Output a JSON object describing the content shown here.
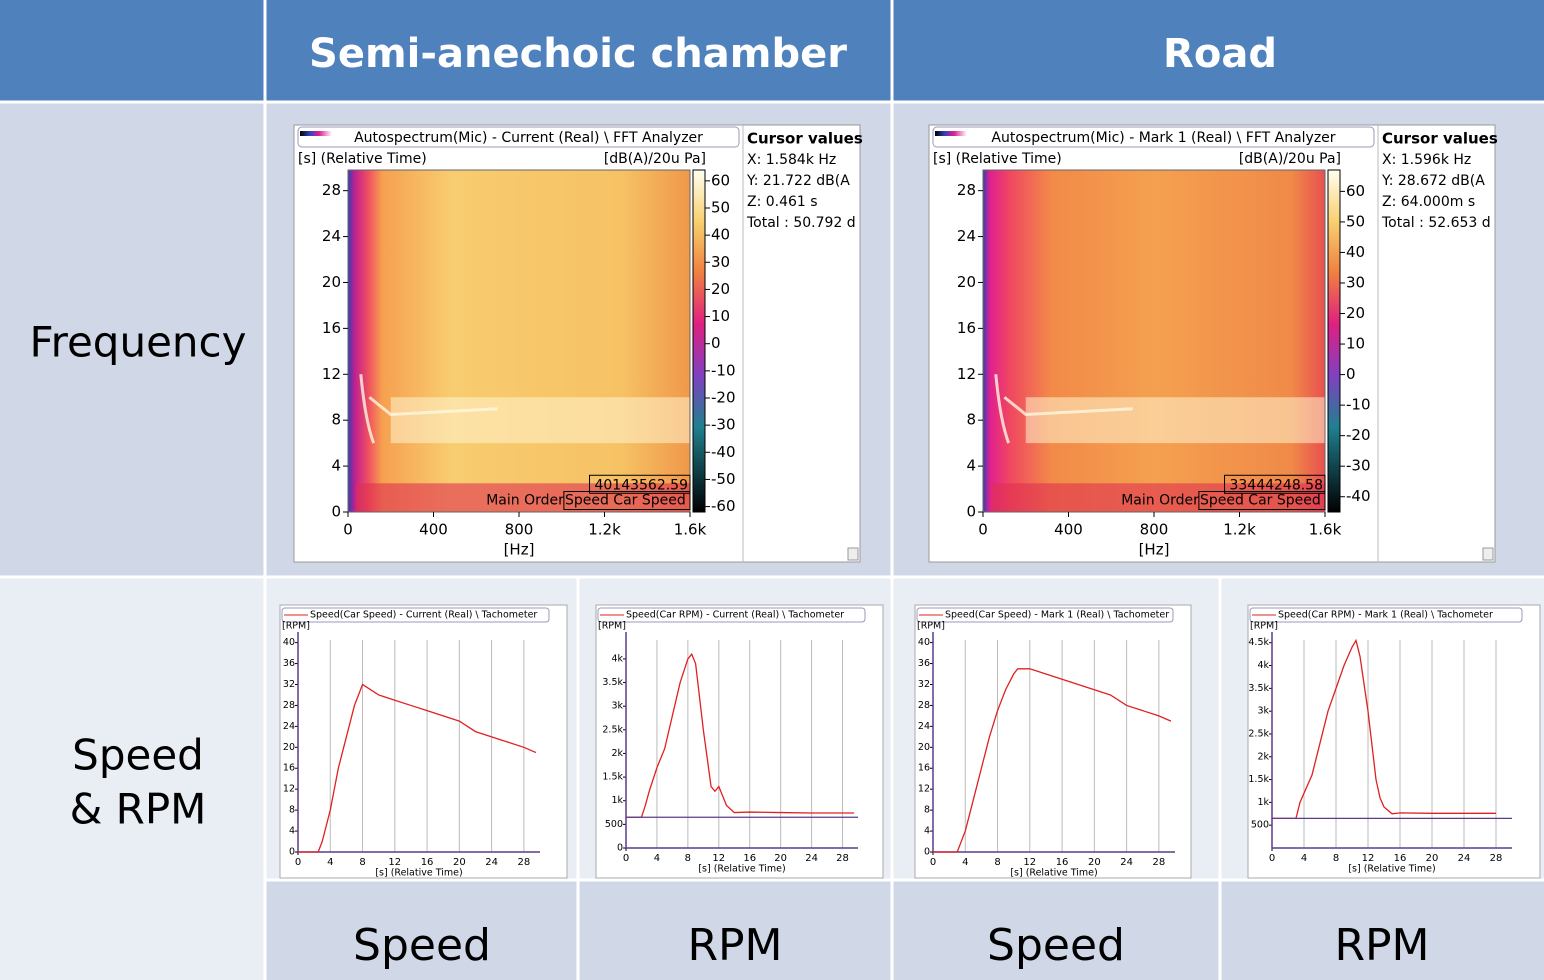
{
  "table": {
    "header": [
      "Semi-anechoic chamber",
      "Road"
    ],
    "row_labels": {
      "frequency": "Frequency",
      "speed_rpm": [
        "Speed",
        "& RPM"
      ]
    },
    "bottom_labels": [
      "Speed",
      "RPM",
      "Speed",
      "RPM"
    ]
  },
  "chart_data": [
    {
      "type": "heatmap",
      "title": "Autospectrum(Mic) - Current (Real) \\  FFT Analyzer",
      "y_label": "[s] (Relative Time)",
      "unit_label": "[dB(A)/20u Pa]",
      "x_label": "[Hz]",
      "xlim": [
        0,
        1600
      ],
      "xticks": [
        0,
        400,
        800,
        {
          "value": 1200,
          "label": "1.2k"
        },
        {
          "value": 1600,
          "label": "1.6k"
        }
      ],
      "ylim": [
        0,
        29.8
      ],
      "yticks": [
        0,
        4,
        8,
        12,
        16,
        20,
        24,
        28
      ],
      "zlim": [
        -62,
        64
      ],
      "zticks": [
        60,
        50,
        40,
        30,
        20,
        10,
        0,
        -10,
        -20,
        -30,
        -40,
        -50,
        -60
      ],
      "annotations": [
        "40143562.59",
        "Main Order",
        "Speed Car Speed"
      ],
      "cursor": {
        "title": "Cursor values",
        "lines": [
          "X: 1.584k Hz",
          "Y: 21.722 dB(A",
          "Z: 0.461 s",
          "Total : 50.792 d"
        ]
      }
    },
    {
      "type": "heatmap",
      "title": "Autospectrum(Mic) - Mark 1 (Real) \\  FFT Analyzer",
      "y_label": "[s] (Relative Time)",
      "unit_label": "[dB(A)/20u Pa]",
      "x_label": "[Hz]",
      "xlim": [
        0,
        1600
      ],
      "xticks": [
        0,
        400,
        800,
        {
          "value": 1200,
          "label": "1.2k"
        },
        {
          "value": 1600,
          "label": "1.6k"
        }
      ],
      "ylim": [
        0,
        29.8
      ],
      "yticks": [
        0,
        4,
        8,
        12,
        16,
        20,
        24,
        28
      ],
      "zlim": [
        -45,
        67
      ],
      "zticks": [
        60,
        50,
        40,
        30,
        20,
        10,
        0,
        -10,
        -20,
        -30,
        -40
      ],
      "annotations": [
        "33444248.58",
        "Main Order",
        "Speed Car Speed"
      ],
      "cursor": {
        "title": "Cursor values",
        "lines": [
          "X: 1.596k Hz",
          "Y: 28.672 dB(A",
          "Z: 64.000m s",
          "Total : 52.653 d"
        ]
      }
    },
    {
      "type": "line",
      "y_label": "[RPM]",
      "x_label": "[s] (Relative Time)",
      "xlim": [
        0,
        30
      ],
      "xticks": [
        0,
        4,
        8,
        12,
        16,
        20,
        24,
        28
      ],
      "ylim": [
        0,
        40.5
      ],
      "yticks": [
        0,
        4,
        8,
        12,
        16,
        20,
        24,
        28,
        32,
        36,
        40
      ],
      "series": [
        {
          "name": "Speed(Car Speed) - Current (Real) \\  Tachometer",
          "color": "#e02020",
          "x": [
            0,
            2.5,
            3,
            4,
            5,
            6,
            7,
            8,
            9,
            10,
            12,
            14,
            16,
            18,
            20,
            22,
            24,
            26,
            28,
            29.5
          ],
          "values": [
            0,
            0,
            2,
            8,
            16,
            22,
            28,
            32,
            31,
            30,
            29,
            28,
            27,
            26,
            25,
            23,
            22,
            21,
            20,
            19
          ]
        }
      ]
    },
    {
      "type": "line",
      "y_label": "[RPM]",
      "x_label": "[s] (Relative Time)",
      "xlim": [
        0,
        30
      ],
      "xticks": [
        0,
        4,
        8,
        12,
        16,
        20,
        24,
        28
      ],
      "ylim": [
        0,
        4400
      ],
      "yticks": [
        0,
        500,
        {
          "value": 1000,
          "label": "1k"
        },
        {
          "value": 1500,
          "label": "1.5k"
        },
        {
          "value": 2000,
          "label": "2k"
        },
        {
          "value": 2500,
          "label": "2.5k"
        },
        {
          "value": 3000,
          "label": "3k"
        },
        {
          "value": 3500,
          "label": "3.5k"
        },
        {
          "value": 4000,
          "label": "4k"
        }
      ],
      "series": [
        {
          "name": "Speed(Car RPM) - Current (Real) \\  Tachometer",
          "color": "#e02020",
          "x": [
            0,
            2,
            2.5,
            3,
            4,
            5,
            6,
            7,
            8,
            8.5,
            9,
            10,
            11,
            11.5,
            12,
            13,
            14,
            16,
            20,
            24,
            29.5
          ],
          "values": [
            650,
            650,
            900,
            1200,
            1700,
            2100,
            2800,
            3500,
            4000,
            4100,
            3900,
            2500,
            1300,
            1200,
            1300,
            900,
            750,
            760,
            750,
            740,
            740
          ]
        },
        {
          "color": "#5b3c8c",
          "x": [
            0,
            30
          ],
          "values": [
            650,
            650
          ]
        }
      ]
    },
    {
      "type": "line",
      "y_label": "[RPM]",
      "x_label": "[s] (Relative Time)",
      "xlim": [
        0,
        30
      ],
      "xticks": [
        0,
        4,
        8,
        12,
        16,
        20,
        24,
        28
      ],
      "ylim": [
        0,
        40.5
      ],
      "yticks": [
        0,
        4,
        8,
        12,
        16,
        20,
        24,
        28,
        32,
        36,
        40
      ],
      "series": [
        {
          "name": "Speed(Car Speed) - Mark 1 (Real) \\  Tachometer",
          "color": "#e02020",
          "x": [
            0,
            3,
            4,
            5,
            6,
            7,
            8,
            9,
            10,
            10.5,
            12,
            14,
            16,
            18,
            20,
            22,
            24,
            26,
            28,
            29.5
          ],
          "values": [
            0,
            0,
            4,
            10,
            16,
            22,
            27,
            31,
            34,
            35,
            35,
            34,
            33,
            32,
            31,
            30,
            28,
            27,
            26,
            25
          ]
        }
      ]
    },
    {
      "type": "line",
      "y_label": "[RPM]",
      "x_label": "[s] (Relative Time)",
      "xlim": [
        0,
        30
      ],
      "xticks": [
        0,
        4,
        8,
        12,
        16,
        20,
        24,
        28
      ],
      "ylim": [
        0,
        4560
      ],
      "yticks": [
        500,
        {
          "value": 1000,
          "label": "1k"
        },
        {
          "value": 1500,
          "label": "1.5k"
        },
        {
          "value": 2000,
          "label": "2k"
        },
        {
          "value": 2500,
          "label": "2.5k"
        },
        {
          "value": 3000,
          "label": "3k"
        },
        {
          "value": 3500,
          "label": "3.5k"
        },
        {
          "value": 4000,
          "label": "4k"
        },
        {
          "value": 4500,
          "label": "4.5k"
        }
      ],
      "series": [
        {
          "name": "Speed(Car RPM) - Mark 1 (Real) \\  Tachometer",
          "color": "#e02020",
          "x": [
            0,
            3,
            3.5,
            5,
            6,
            7,
            8,
            9,
            10,
            10.5,
            11,
            12,
            13,
            13.5,
            14,
            15,
            16,
            20,
            28
          ],
          "values": [
            650,
            650,
            1000,
            1600,
            2300,
            3000,
            3500,
            4000,
            4400,
            4550,
            4200,
            3000,
            1500,
            1100,
            900,
            750,
            770,
            760,
            760
          ]
        },
        {
          "color": "#5b3c8c",
          "x": [
            0,
            30
          ],
          "values": [
            650,
            650
          ]
        }
      ]
    }
  ]
}
